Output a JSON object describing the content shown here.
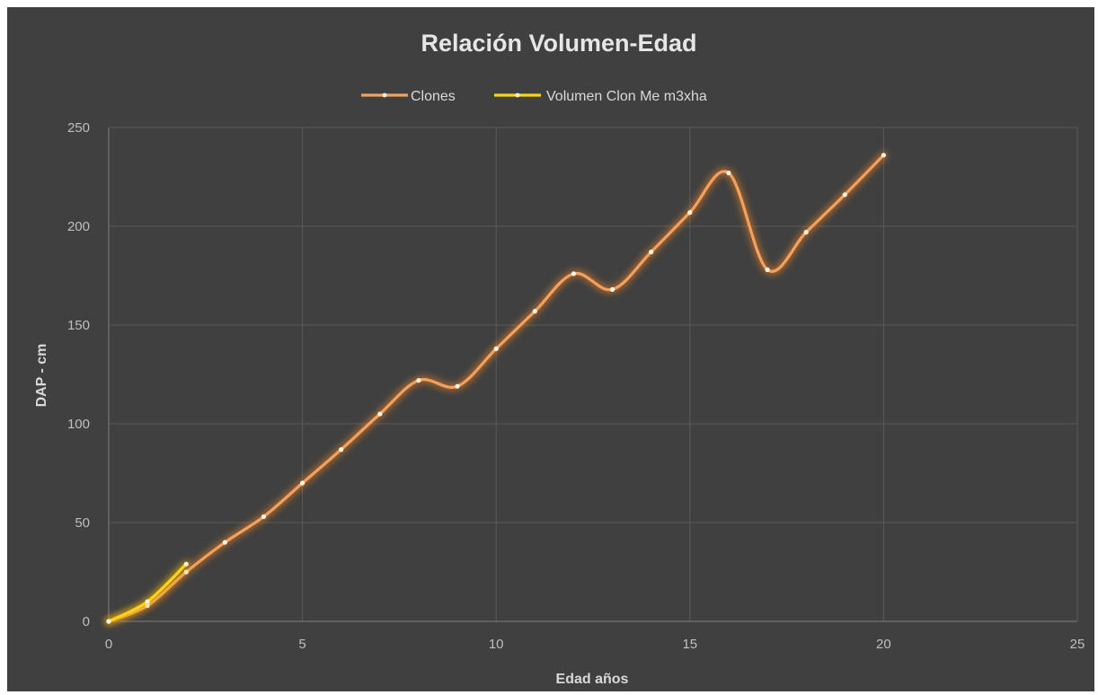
{
  "chart_data": {
    "type": "line",
    "title": "Relación Volumen-Edad",
    "xlabel": "Edad años",
    "ylabel": "DAP - cm",
    "xlim": [
      0,
      25
    ],
    "ylim": [
      0,
      250
    ],
    "xticks": [
      0,
      5,
      10,
      15,
      20,
      25
    ],
    "yticks": [
      0,
      50,
      100,
      150,
      200,
      250
    ],
    "grid": true,
    "legend_position": "top",
    "series": [
      {
        "name": "Clones",
        "color": "#f4a15d",
        "glow": "#e07b2a",
        "x": [
          0,
          1,
          2,
          3,
          4,
          5,
          6,
          7,
          8,
          9,
          10,
          11,
          12,
          13,
          14,
          15,
          16,
          17,
          18,
          19,
          20
        ],
        "y": [
          0,
          8,
          25,
          40,
          53,
          70,
          87,
          105,
          122,
          119,
          138,
          157,
          176,
          168,
          187,
          207,
          227,
          178,
          197,
          216,
          236
        ]
      },
      {
        "name": "Volumen Clon Me m3xha",
        "color": "#ffd21a",
        "glow": "#e6b800",
        "x": [
          0,
          1,
          2
        ],
        "y": [
          0,
          10,
          29
        ]
      }
    ]
  }
}
